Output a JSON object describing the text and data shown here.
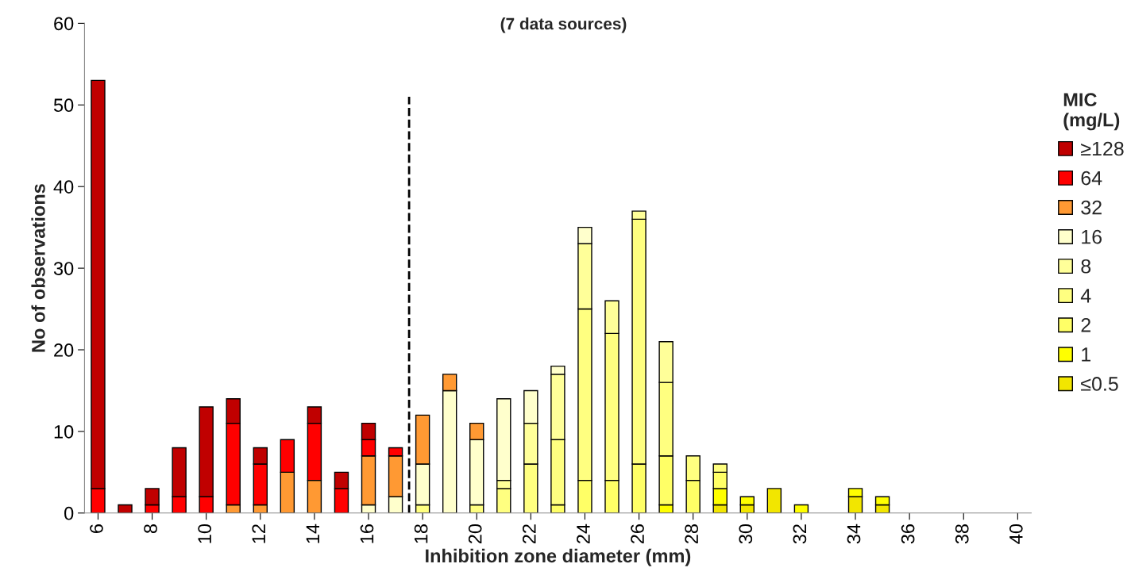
{
  "chart_data": {
    "type": "bar",
    "stacked": true,
    "subtitle": "(7 data sources)",
    "xlabel": "Inhibition zone diameter (mm)",
    "ylabel": "No of observations",
    "legend_title": "MIC\n(mg/L)",
    "x": [
      6,
      7,
      8,
      9,
      10,
      11,
      12,
      13,
      14,
      15,
      16,
      17,
      18,
      19,
      20,
      21,
      22,
      23,
      24,
      25,
      26,
      27,
      28,
      29,
      30,
      31,
      32,
      33,
      34,
      35,
      36,
      37,
      38,
      39,
      40
    ],
    "xlim": [
      5.5,
      40.5
    ],
    "xticks": [
      6,
      8,
      10,
      12,
      14,
      16,
      18,
      20,
      22,
      24,
      26,
      28,
      30,
      32,
      34,
      36,
      38,
      40
    ],
    "ylim": [
      0,
      60
    ],
    "yticks": [
      0,
      10,
      20,
      30,
      40,
      50,
      60
    ],
    "grid": false,
    "legend": "right",
    "ref_lines": [
      {
        "axis": "x",
        "value": 17.5,
        "color": "#000000",
        "line_style": "dashed"
      }
    ],
    "series": [
      {
        "name": "≤0.5",
        "color": "#f2e600",
        "values": [
          0,
          0,
          0,
          0,
          0,
          0,
          0,
          0,
          0,
          0,
          0,
          0,
          0,
          0,
          0,
          0,
          0,
          0,
          0,
          0,
          0,
          0,
          0,
          1,
          1,
          3,
          0,
          0,
          2,
          1,
          0,
          0,
          0,
          0,
          0
        ]
      },
      {
        "name": "1",
        "color": "#ffff00",
        "values": [
          0,
          0,
          0,
          0,
          0,
          0,
          0,
          0,
          0,
          0,
          0,
          0,
          0,
          0,
          0,
          0,
          0,
          0,
          0,
          0,
          0,
          1,
          0,
          2,
          1,
          0,
          1,
          0,
          1,
          1,
          0,
          0,
          0,
          0,
          0
        ]
      },
      {
        "name": "2",
        "color": "#ffff66",
        "values": [
          0,
          0,
          0,
          0,
          0,
          0,
          0,
          0,
          0,
          0,
          0,
          0,
          0,
          0,
          0,
          0,
          0,
          1,
          4,
          4,
          6,
          6,
          4,
          2,
          0,
          0,
          0,
          0,
          0,
          0,
          0,
          0,
          0,
          0,
          0
        ]
      },
      {
        "name": "4",
        "color": "#ffff80",
        "values": [
          0,
          0,
          0,
          0,
          0,
          0,
          0,
          0,
          0,
          0,
          0,
          0,
          1,
          0,
          1,
          3,
          6,
          8,
          21,
          18,
          30,
          9,
          3,
          1,
          0,
          0,
          0,
          0,
          0,
          0,
          0,
          0,
          0,
          0,
          0
        ]
      },
      {
        "name": "8",
        "color": "#ffff99",
        "values": [
          0,
          0,
          0,
          0,
          0,
          0,
          0,
          0,
          0,
          0,
          0,
          0,
          0,
          0,
          0,
          1,
          5,
          8,
          8,
          4,
          1,
          5,
          0,
          0,
          0,
          0,
          0,
          0,
          0,
          0,
          0,
          0,
          0,
          0,
          0
        ]
      },
      {
        "name": "16",
        "color": "#ffffcc",
        "values": [
          0,
          0,
          0,
          0,
          0,
          0,
          0,
          0,
          0,
          0,
          1,
          2,
          5,
          15,
          8,
          10,
          4,
          1,
          2,
          0,
          0,
          0,
          0,
          0,
          0,
          0,
          0,
          0,
          0,
          0,
          0,
          0,
          0,
          0,
          0
        ]
      },
      {
        "name": "32",
        "color": "#ff9933",
        "values": [
          0,
          0,
          0,
          0,
          0,
          1,
          1,
          5,
          4,
          0,
          6,
          5,
          6,
          2,
          2,
          0,
          0,
          0,
          0,
          0,
          0,
          0,
          0,
          0,
          0,
          0,
          0,
          0,
          0,
          0,
          0,
          0,
          0,
          0,
          0
        ]
      },
      {
        "name": "64",
        "color": "#ff0000",
        "values": [
          3,
          0,
          1,
          2,
          2,
          10,
          5,
          4,
          7,
          3,
          2,
          1,
          0,
          0,
          0,
          0,
          0,
          0,
          0,
          0,
          0,
          0,
          0,
          0,
          0,
          0,
          0,
          0,
          0,
          0,
          0,
          0,
          0,
          0,
          0
        ]
      },
      {
        "name": "≥128",
        "color": "#c00000",
        "values": [
          50,
          1,
          2,
          6,
          11,
          3,
          2,
          0,
          2,
          2,
          2,
          0,
          0,
          0,
          0,
          0,
          0,
          0,
          0,
          0,
          0,
          0,
          0,
          0,
          0,
          0,
          0,
          0,
          0,
          0,
          0,
          0,
          0,
          0,
          0
        ]
      }
    ]
  }
}
